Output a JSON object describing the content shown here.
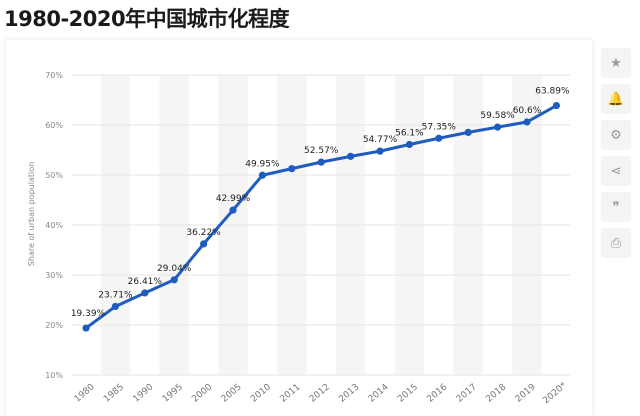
{
  "page": {
    "title": "1980-2020年中国城市化程度"
  },
  "toolbar": [
    {
      "name": "star-icon",
      "glyph": "★"
    },
    {
      "name": "bell-icon",
      "glyph": "🔔"
    },
    {
      "name": "gear-icon",
      "glyph": "⚙"
    },
    {
      "name": "share-icon",
      "glyph": "⋖"
    },
    {
      "name": "quote-icon",
      "glyph": "❞"
    },
    {
      "name": "print-icon",
      "glyph": "⎙"
    }
  ],
  "chart_data": {
    "type": "line",
    "title": "",
    "xlabel": "",
    "ylabel": "Share of urban population",
    "categories": [
      "1980",
      "1985",
      "1990",
      "1995",
      "2000",
      "2005",
      "2010",
      "2011",
      "2012",
      "2013",
      "2014",
      "2015",
      "2016",
      "2017",
      "2018",
      "2019",
      "2020*"
    ],
    "series": [
      {
        "values": [
          19.39,
          23.71,
          26.41,
          29.04,
          36.22,
          42.99,
          49.95,
          51.27,
          52.57,
          53.73,
          54.77,
          56.1,
          57.35,
          58.52,
          59.58,
          60.6,
          63.89
        ]
      }
    ],
    "data_labels": [
      "19.39%",
      "23.71%",
      "26.41%",
      "29.04%",
      "36.22%",
      "42.99%",
      "49.95%",
      "",
      "52.57%",
      "",
      "54.77%",
      "56.1%",
      "57.35%",
      "",
      "59.58%",
      "60.6%",
      "63.89%"
    ],
    "yticks": [
      "10%",
      "20%",
      "30%",
      "40%",
      "50%",
      "60%",
      "70%"
    ],
    "ylim": [
      10,
      70
    ],
    "grid": true,
    "line_color": "#1f5cbf",
    "band_color": "#f5f5f5",
    "grid_color": "#e6e6e6"
  }
}
